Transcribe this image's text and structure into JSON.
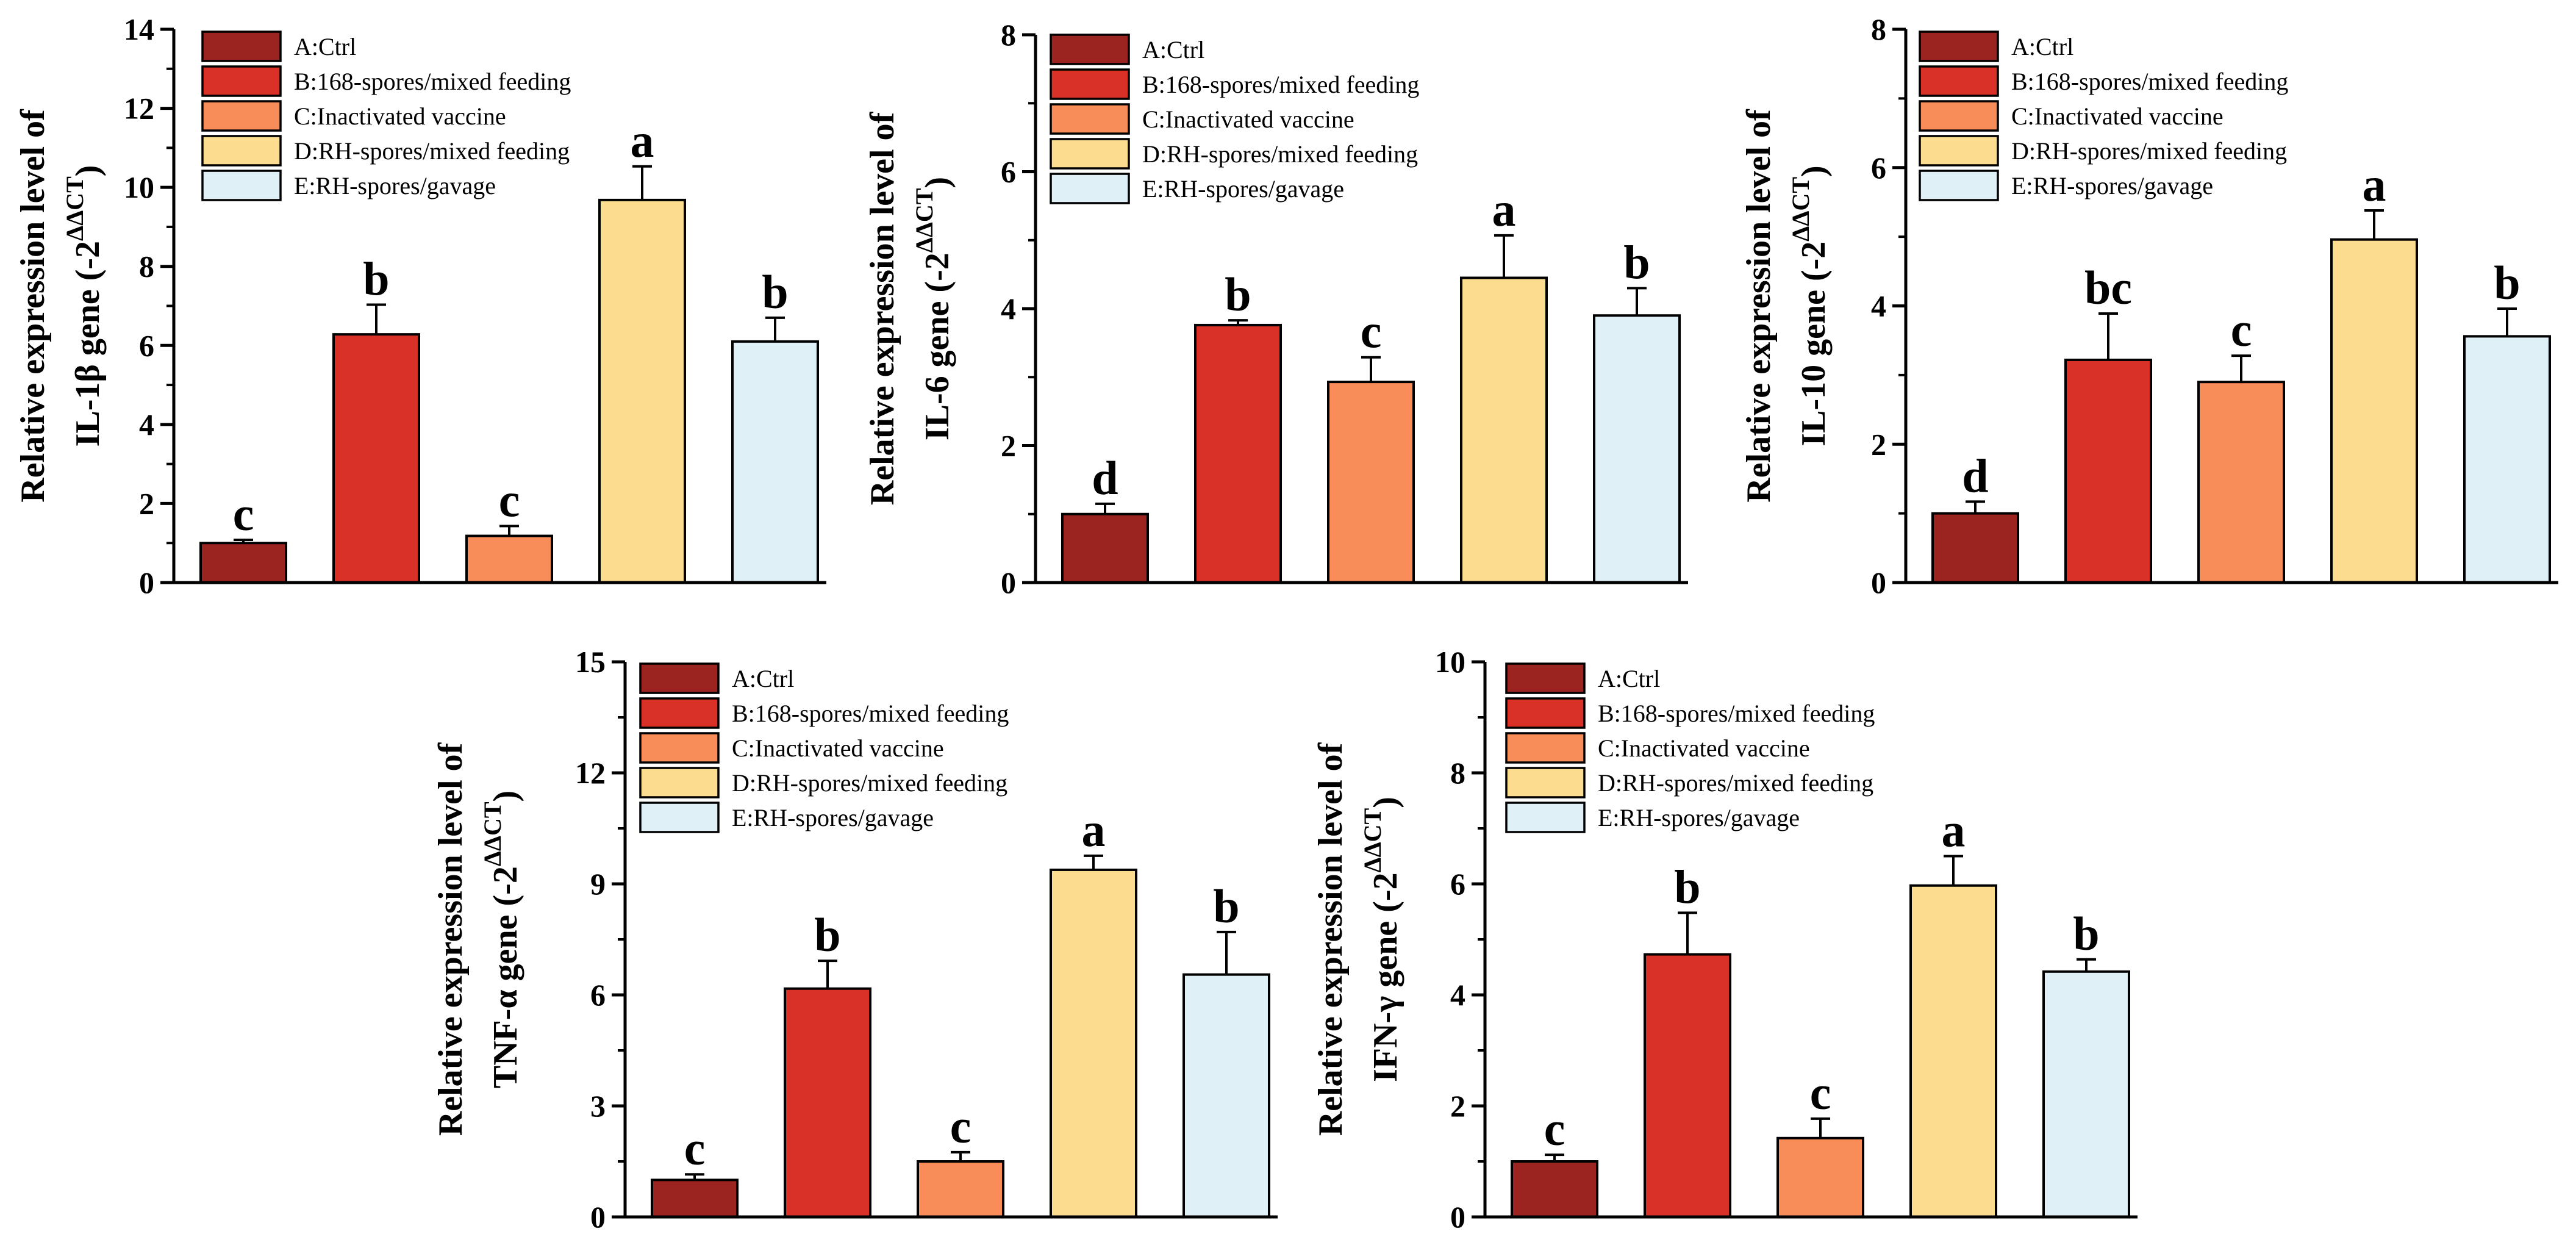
{
  "colors": {
    "A": "#9b2320",
    "B": "#d93128",
    "C": "#f98d5a",
    "D": "#fcdc8e",
    "E": "#dff1f7",
    "axis": "#000000"
  },
  "legend_items": [
    {
      "key": "A",
      "label": "A:Ctrl"
    },
    {
      "key": "B",
      "label": "B:168-spores/mixed feeding"
    },
    {
      "key": "C",
      "label": "C:Inactivated vaccine"
    },
    {
      "key": "D",
      "label": "D:RH-spores/mixed feeding"
    },
    {
      "key": "E",
      "label": "E:RH-spores/gavage"
    }
  ],
  "chart_data": [
    {
      "id": "il1b",
      "type": "bar",
      "categories": [
        "A",
        "B",
        "C",
        "D",
        "E"
      ],
      "values": [
        1.0,
        6.28,
        1.18,
        9.68,
        6.1
      ],
      "errors": [
        0.08,
        0.75,
        0.25,
        0.85,
        0.6
      ],
      "letters": [
        "c",
        "b",
        "c",
        "a",
        "b"
      ],
      "ylim": [
        0,
        14
      ],
      "yticks": [
        0,
        2,
        4,
        6,
        8,
        10,
        12,
        14
      ],
      "ylabel_line1": "Relative expression level of",
      "ylabel_line2": "IL-1β gene (-2",
      "ylabel_sup": "ΔΔCT",
      "ylabel_close": ")",
      "xlabel": "",
      "legend": "top-left"
    },
    {
      "id": "il6",
      "type": "bar",
      "categories": [
        "A",
        "B",
        "C",
        "D",
        "E"
      ],
      "values": [
        1.0,
        3.76,
        2.93,
        4.45,
        3.9
      ],
      "errors": [
        0.15,
        0.07,
        0.36,
        0.62,
        0.4
      ],
      "letters": [
        "d",
        "b",
        "c",
        "a",
        "b"
      ],
      "ylim": [
        0,
        8
      ],
      "yticks": [
        0,
        2,
        4,
        6,
        8
      ],
      "ylabel_line1": "Relative expression level of",
      "ylabel_line2": "IL-6 gene (-2",
      "ylabel_sup": "ΔΔCT",
      "ylabel_close": ")",
      "xlabel": "",
      "legend": "top-left"
    },
    {
      "id": "il10",
      "type": "bar",
      "categories": [
        "A",
        "B",
        "C",
        "D",
        "E"
      ],
      "values": [
        1.0,
        3.22,
        2.9,
        4.96,
        3.56
      ],
      "errors": [
        0.17,
        0.67,
        0.38,
        0.42,
        0.4
      ],
      "letters": [
        "d",
        "bc",
        "c",
        "a",
        "b"
      ],
      "ylim": [
        0,
        8
      ],
      "yticks": [
        0,
        2,
        4,
        6,
        8
      ],
      "ylabel_line1": "Relative expression level of",
      "ylabel_line2": "IL-10 gene (-2",
      "ylabel_sup": "ΔΔCT",
      "ylabel_close": ")",
      "xlabel": "",
      "legend": "top-left"
    },
    {
      "id": "tnfa",
      "type": "bar",
      "categories": [
        "A",
        "B",
        "C",
        "D",
        "E"
      ],
      "values": [
        1.0,
        6.17,
        1.5,
        9.38,
        6.55
      ],
      "errors": [
        0.15,
        0.75,
        0.25,
        0.38,
        1.15
      ],
      "letters": [
        "c",
        "b",
        "c",
        "a",
        "b"
      ],
      "ylim": [
        0,
        15
      ],
      "yticks": [
        0,
        3,
        6,
        9,
        12,
        15
      ],
      "ylabel_line1": "Relative expression level of",
      "ylabel_line2": "TNF-α gene (-2",
      "ylabel_sup": "ΔΔCT",
      "ylabel_close": ")",
      "xlabel": "",
      "legend": "top-left"
    },
    {
      "id": "ifng",
      "type": "bar",
      "categories": [
        "A",
        "B",
        "C",
        "D",
        "E"
      ],
      "values": [
        1.0,
        4.73,
        1.42,
        5.97,
        4.42
      ],
      "errors": [
        0.12,
        0.75,
        0.35,
        0.53,
        0.22
      ],
      "letters": [
        "c",
        "b",
        "c",
        "a",
        "b"
      ],
      "ylim": [
        0,
        10
      ],
      "yticks": [
        0,
        2,
        4,
        6,
        8,
        10
      ],
      "ylabel_line1": "Relative expression level of",
      "ylabel_line2": "IFN-γ gene (-2",
      "ylabel_sup": "ΔΔCT",
      "ylabel_close": ")",
      "xlabel": "",
      "legend": "top-left"
    }
  ]
}
